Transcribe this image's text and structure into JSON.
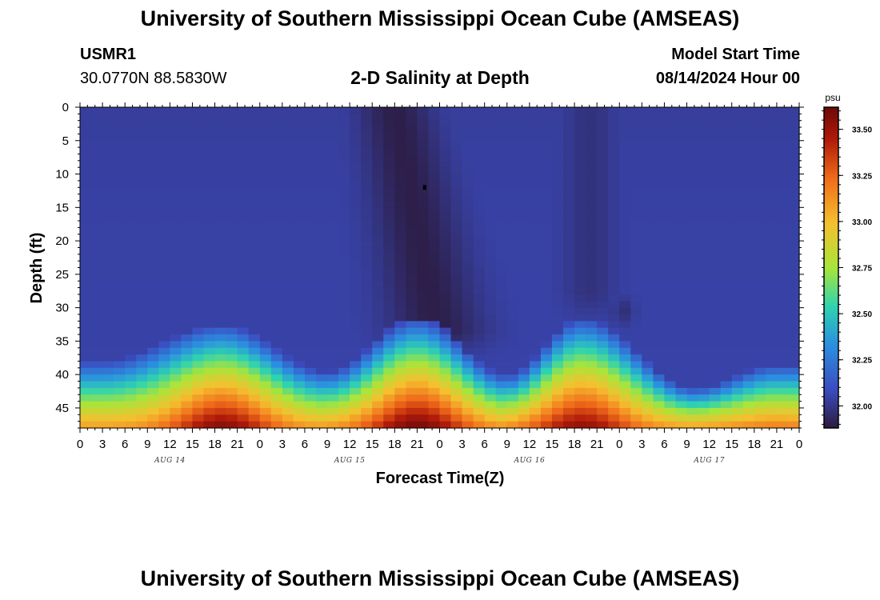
{
  "header": {
    "title": "University of Southern Mississippi Ocean Cube (AMSEAS)",
    "station_id": "USMR1",
    "station_coords": "30.0770N  88.5830W",
    "subtitle": "2-D Salinity at Depth",
    "model_start_label": "Model Start Time",
    "model_start_value": "08/14/2024 Hour 00"
  },
  "footer": {
    "title": "University of Southern Mississippi Ocean Cube (AMSEAS)"
  },
  "colors": {
    "scale": [
      "#2b1a3d",
      "#3b4cc0",
      "#2b8fe0",
      "#2ed3b0",
      "#a8e53a",
      "#f5c02f",
      "#f06b1a",
      "#b01a0a",
      "#6e0a08"
    ]
  },
  "chart_data": {
    "type": "heatmap",
    "title": "2-D Salinity at Depth",
    "xlabel": "Forecast Time(Z)",
    "ylabel": "Depth (ft)",
    "x_unit": "hours since 08/14/2024 00Z",
    "xlim": [
      0,
      96
    ],
    "ylim": [
      0,
      48
    ],
    "y_inverted": true,
    "x_tick_labels": [
      "0",
      "3",
      "6",
      "9",
      "12",
      "15",
      "18",
      "21",
      "0",
      "3",
      "6",
      "9",
      "12",
      "15",
      "18",
      "21",
      "0",
      "3",
      "6",
      "9",
      "12",
      "15",
      "18",
      "21",
      "0",
      "3",
      "6",
      "9",
      "12",
      "15",
      "18",
      "21",
      "0"
    ],
    "y_tick_values": [
      0,
      5,
      10,
      15,
      20,
      25,
      30,
      35,
      40,
      45
    ],
    "y_tick_labels": [
      "0",
      "5",
      "10",
      "15",
      "20",
      "25",
      "30",
      "35",
      "40",
      "45"
    ],
    "date_labels": [
      {
        "label": "AUG 14",
        "hour": 12
      },
      {
        "label": "AUG 15",
        "hour": 36
      },
      {
        "label": "AUG 16",
        "hour": 60
      },
      {
        "label": "AUG 17",
        "hour": 84
      }
    ],
    "colorbar": {
      "unit": "psu",
      "range": [
        31.88,
        33.62
      ],
      "tick_values": [
        32.0,
        32.25,
        32.5,
        32.75,
        33.0,
        33.25,
        33.5
      ],
      "tick_labels": [
        "32.00",
        "32.25",
        "32.50",
        "32.75",
        "33.00",
        "33.25",
        "33.50"
      ]
    },
    "background_salinity": 32.05,
    "marker": {
      "hour": 46,
      "depth": 12
    },
    "bottom_layer_crests": [
      {
        "hour": 19,
        "top_depth": 36.5,
        "bottom_salinity": 33.58
      },
      {
        "hour": 45,
        "top_depth": 35.5,
        "bottom_salinity": 33.62
      },
      {
        "hour": 67,
        "top_depth": 35.5,
        "bottom_salinity": 33.55
      },
      {
        "hour": 93,
        "top_depth": 42.5,
        "bottom_salinity": 33.2
      }
    ],
    "bottom_layer_troughs": [
      {
        "hour": 3,
        "top_depth": 42.0
      },
      {
        "hour": 33,
        "top_depth": 43.5
      },
      {
        "hour": 57,
        "top_depth": 44.0
      },
      {
        "hour": 82,
        "top_depth": 46.0
      }
    ],
    "fresh_plumes": [
      {
        "hour_start": 37,
        "hour_center": 46,
        "hour_end": 53,
        "depth_max": 33,
        "min_salinity": 31.9
      },
      {
        "hour_start": 64,
        "hour_center": 68,
        "hour_end": 74,
        "depth_max": 27,
        "min_salinity": 31.98
      },
      {
        "hour_center": 72.5,
        "depth_center": 30.5,
        "min_salinity": 31.97
      }
    ]
  }
}
